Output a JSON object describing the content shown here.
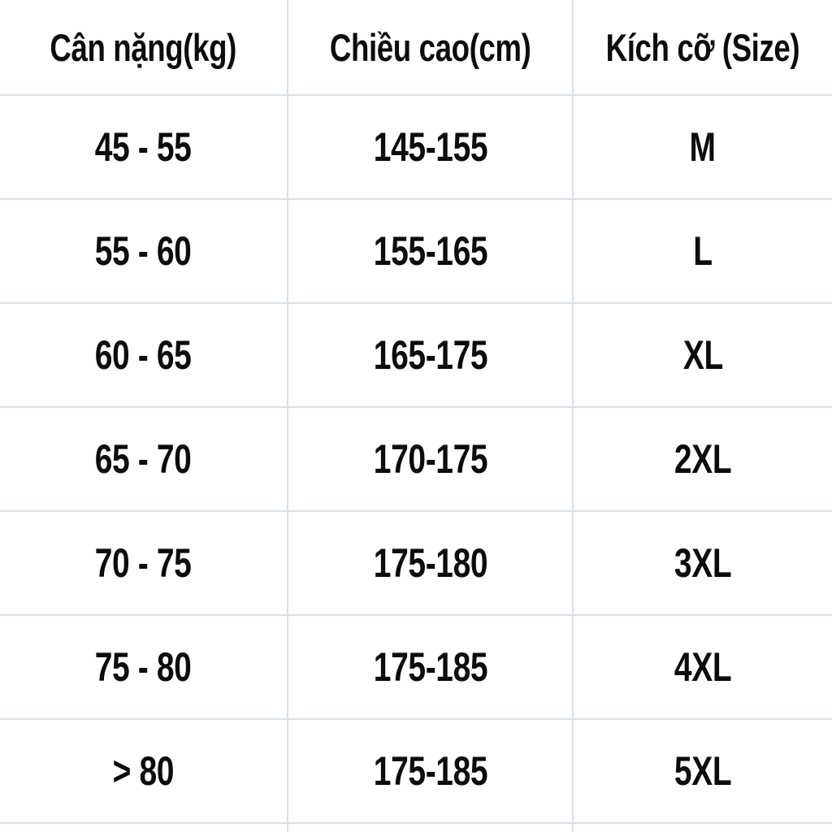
{
  "table": {
    "headers": {
      "weight": "Cân nặng(kg)",
      "height": "Chiều cao(cm)",
      "size": "Kích cỡ (Size)"
    },
    "rows": [
      {
        "weight": "45 - 55",
        "height": "145-155",
        "size": "M"
      },
      {
        "weight": "55 - 60",
        "height": "155-165",
        "size": "L"
      },
      {
        "weight": "60 - 65",
        "height": "165-175",
        "size": "XL"
      },
      {
        "weight": "65 - 70",
        "height": "170-175",
        "size": "2XL"
      },
      {
        "weight": "70 - 75",
        "height": "175-180",
        "size": "3XL"
      },
      {
        "weight": "75 - 80",
        "height": "175-185",
        "size": "4XL"
      },
      {
        "weight": "> 80",
        "height": "175-185",
        "size": "5XL"
      }
    ]
  },
  "colors": {
    "border": "#d9dfe9",
    "text": "#0c0c0e",
    "background": "#ffffff"
  },
  "chart_data": {
    "type": "table",
    "columns": [
      "Cân nặng(kg)",
      "Chiều cao(cm)",
      "Kích cỡ (Size)"
    ],
    "rows": [
      [
        "45 - 55",
        "145-155",
        "M"
      ],
      [
        "55 - 60",
        "155-165",
        "L"
      ],
      [
        "60 - 65",
        "165-175",
        "XL"
      ],
      [
        "65 - 70",
        "170-175",
        "2XL"
      ],
      [
        "70 - 75",
        "175-180",
        "3XL"
      ],
      [
        "75 - 80",
        "175-185",
        "4XL"
      ],
      [
        "> 80",
        "175-185",
        "5XL"
      ]
    ]
  }
}
